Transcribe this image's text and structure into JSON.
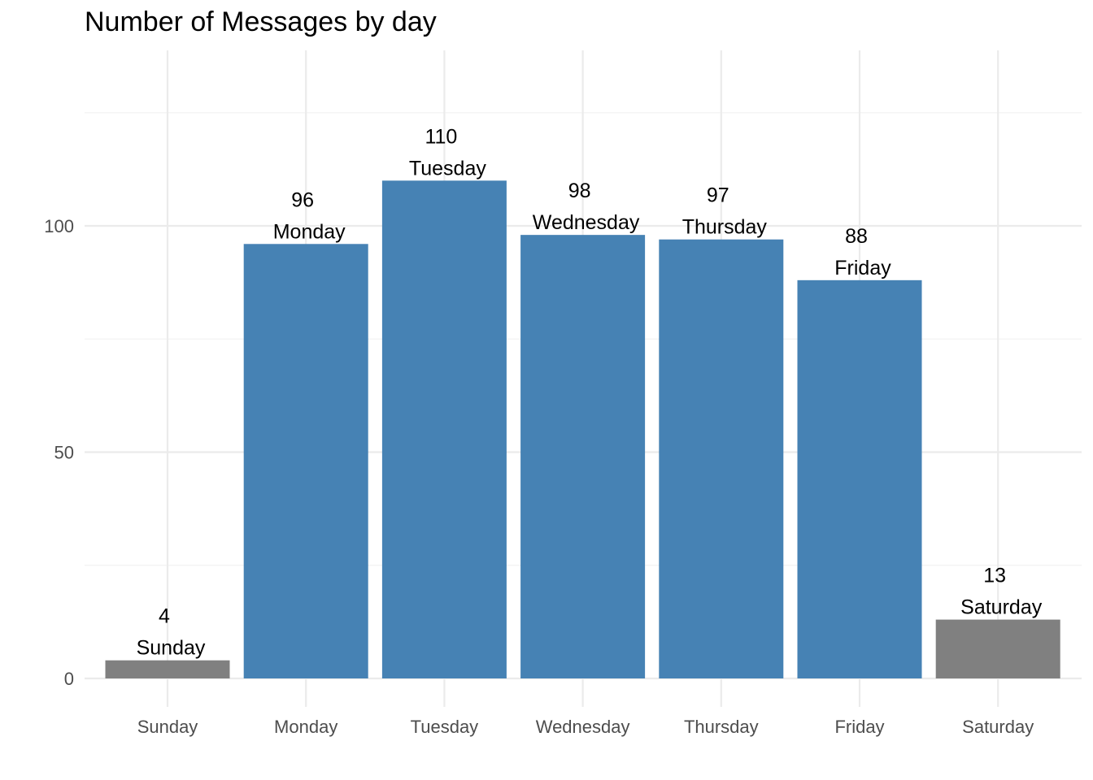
{
  "chart_data": {
    "type": "bar",
    "title": "Number of Messages by day",
    "xlabel": "",
    "ylabel": "",
    "categories": [
      "Sunday",
      "Monday",
      "Tuesday",
      "Wednesday",
      "Thursday",
      "Friday",
      "Saturday"
    ],
    "values": [
      4,
      96,
      110,
      98,
      97,
      88,
      13
    ],
    "bar_labels": [
      {
        "value": "4",
        "day": "Sunday"
      },
      {
        "value": "96",
        "day": "Monday"
      },
      {
        "value": "110",
        "day": "Tuesday"
      },
      {
        "value": "98",
        "day": "Wednesday"
      },
      {
        "value": "97",
        "day": "Thursday"
      },
      {
        "value": "88",
        "day": "Friday"
      },
      {
        "value": "13",
        "day": "Saturday"
      }
    ],
    "bar_colors": [
      "#808080",
      "#4682b4",
      "#4682b4",
      "#4682b4",
      "#4682b4",
      "#4682b4",
      "#808080"
    ],
    "ylim": [
      0,
      125
    ],
    "yticks": [
      0,
      50,
      100
    ],
    "ytick_labels": [
      "0",
      "50",
      "100"
    ],
    "grid": true,
    "legend": "none"
  }
}
